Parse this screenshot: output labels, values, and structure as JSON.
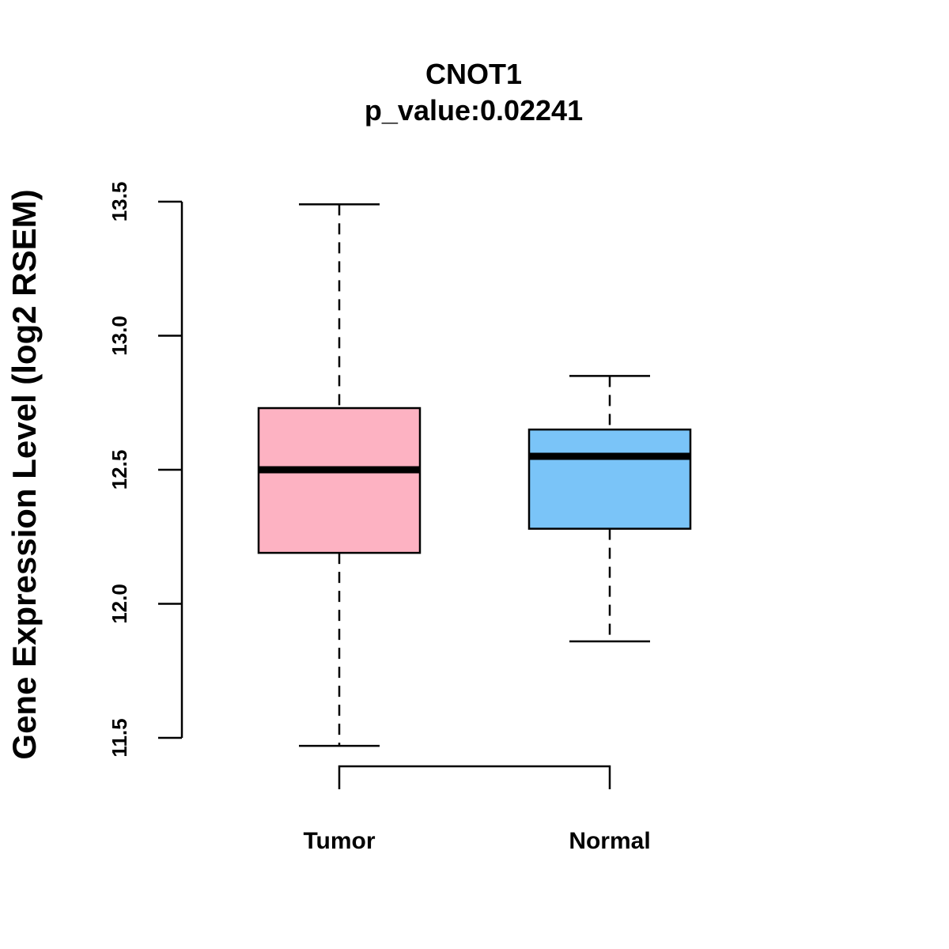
{
  "chart_data": {
    "type": "box",
    "title": "CNOT1",
    "subtitle": "p_value:0.02241",
    "xlabel": "",
    "ylabel": "Gene Expression Level (log2 RSEM)",
    "ylim": [
      11.5,
      13.5
    ],
    "yticks": [
      11.5,
      12.0,
      12.5,
      13.0,
      13.5
    ],
    "ytick_labels": [
      "11.5",
      "12.0",
      "12.5",
      "13.0",
      "13.5"
    ],
    "categories": [
      "Tumor",
      "Normal"
    ],
    "boxes": [
      {
        "name": "Tumor",
        "min": 11.47,
        "q1": 12.19,
        "median": 12.5,
        "q3": 12.73,
        "max": 13.49,
        "color": "#FDB2C2"
      },
      {
        "name": "Normal",
        "min": 11.86,
        "q1": 12.28,
        "median": 12.55,
        "q3": 12.65,
        "max": 12.85,
        "color": "#7AC4F8"
      }
    ],
    "comparison_bracket": [
      "Tumor",
      "Normal"
    ]
  }
}
